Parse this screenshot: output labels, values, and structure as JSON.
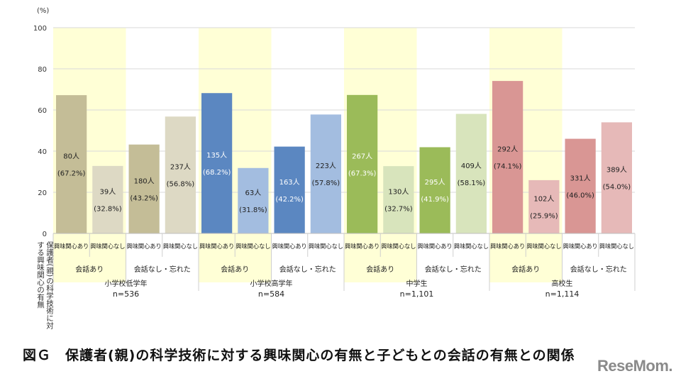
{
  "chart_data": {
    "type": "bar",
    "yunit": "(%)",
    "ylim": [
      0,
      100
    ],
    "yticks": [
      0,
      20,
      40,
      60,
      80,
      100
    ],
    "grid": true,
    "ylabel_vertical": "保護者(親)の科学技術に対する興味関心の有無",
    "groups": [
      {
        "label": "小学校低学年",
        "n": "n=536",
        "colors": [
          "#c4bd97",
          "#ddd9c4"
        ]
      },
      {
        "label": "小学校高学年",
        "n": "n=584",
        "colors": [
          "#5b87c1",
          "#a3bde0"
        ]
      },
      {
        "label": "中学生",
        "n": "n=1,101",
        "colors": [
          "#9bbb59",
          "#d8e4bc"
        ]
      },
      {
        "label": "高校生",
        "n": "n=1,114",
        "colors": [
          "#d99694",
          "#e6b9b8"
        ]
      }
    ],
    "subgroups": [
      "会話あり",
      "会話なし・忘れた"
    ],
    "categories": [
      "興味関心あり",
      "興味関心なし"
    ],
    "bars": [
      {
        "group": 0,
        "sub": 0,
        "cat": 0,
        "value": 67.2,
        "count": "80人",
        "pct": "(67.2%)"
      },
      {
        "group": 0,
        "sub": 0,
        "cat": 1,
        "value": 32.8,
        "count": "39人",
        "pct": "(32.8%)"
      },
      {
        "group": 0,
        "sub": 1,
        "cat": 0,
        "value": 43.2,
        "count": "180人",
        "pct": "(43.2%)"
      },
      {
        "group": 0,
        "sub": 1,
        "cat": 1,
        "value": 56.8,
        "count": "237人",
        "pct": "(56.8%)"
      },
      {
        "group": 1,
        "sub": 0,
        "cat": 0,
        "value": 68.2,
        "count": "135人",
        "pct": "(68.2%)"
      },
      {
        "group": 1,
        "sub": 0,
        "cat": 1,
        "value": 31.8,
        "count": "63人",
        "pct": "(31.8%)"
      },
      {
        "group": 1,
        "sub": 1,
        "cat": 0,
        "value": 42.2,
        "count": "163人",
        "pct": "(42.2%)"
      },
      {
        "group": 1,
        "sub": 1,
        "cat": 1,
        "value": 57.8,
        "count": "223人",
        "pct": "(57.8%)"
      },
      {
        "group": 2,
        "sub": 0,
        "cat": 0,
        "value": 67.3,
        "count": "267人",
        "pct": "(67.3%)"
      },
      {
        "group": 2,
        "sub": 0,
        "cat": 1,
        "value": 32.7,
        "count": "130人",
        "pct": "(32.7%)"
      },
      {
        "group": 2,
        "sub": 1,
        "cat": 0,
        "value": 41.9,
        "count": "295人",
        "pct": "(41.9%)"
      },
      {
        "group": 2,
        "sub": 1,
        "cat": 1,
        "value": 58.1,
        "count": "409人",
        "pct": "(58.1%)"
      },
      {
        "group": 3,
        "sub": 0,
        "cat": 0,
        "value": 74.1,
        "count": "292人",
        "pct": "(74.1%)"
      },
      {
        "group": 3,
        "sub": 0,
        "cat": 1,
        "value": 25.9,
        "count": "102人",
        "pct": "(25.9%)"
      },
      {
        "group": 3,
        "sub": 1,
        "cat": 0,
        "value": 46.0,
        "count": "331人",
        "pct": "(46.0%)"
      },
      {
        "group": 3,
        "sub": 1,
        "cat": 1,
        "value": 54.0,
        "count": "389人",
        "pct": "(54.0%)"
      }
    ],
    "highlight_color": "#ffffd6"
  },
  "caption": "図Ｇ　保護者(親)の科学技術に対する興味関心の有無と子どもとの会話の有無との関係",
  "logo": "ReseMom"
}
